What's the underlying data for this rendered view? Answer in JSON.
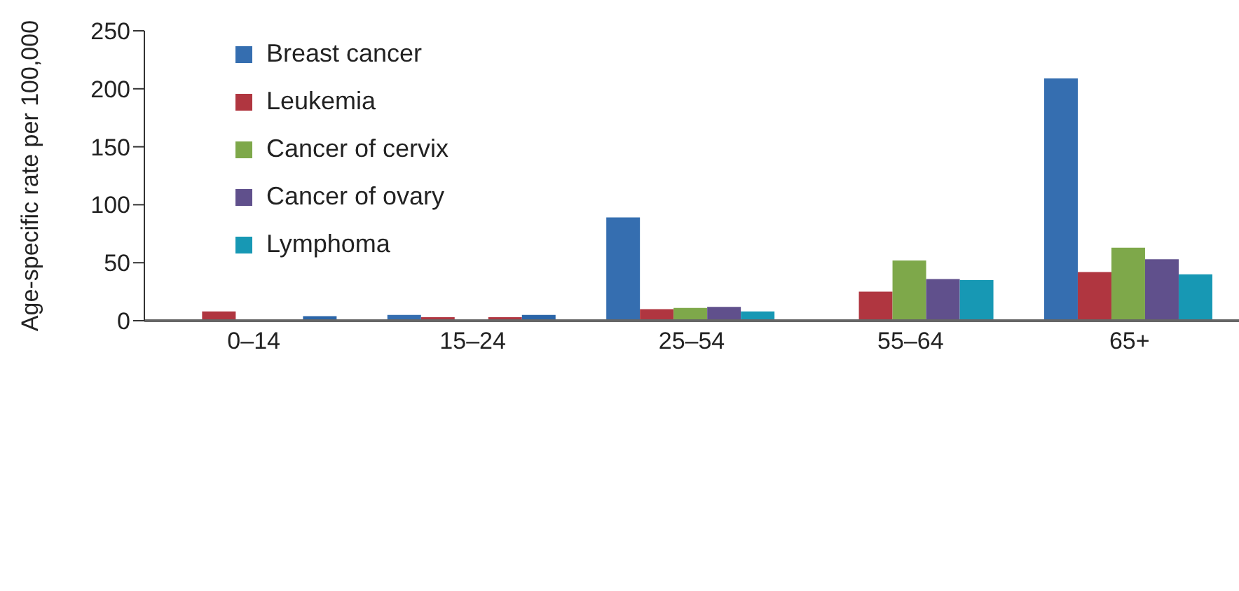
{
  "chart_data": {
    "type": "bar",
    "ylabel": "Age-specific rate per 100,000",
    "categories": [
      "0–14",
      "15–24",
      "25–54",
      "55–64",
      "65+"
    ],
    "series": [
      {
        "name": "Breast cancer",
        "color": "#356eb0",
        "values": [
          0,
          5,
          89,
          0,
          209
        ]
      },
      {
        "name": "Leukemia",
        "color": "#b03640",
        "values": [
          8,
          3,
          10,
          25,
          42
        ]
      },
      {
        "name": "Cancer of cervix",
        "color": "#7ea84a",
        "values": [
          0,
          0,
          11,
          52,
          63
        ]
      },
      {
        "name": "Cancer of ovary",
        "color": "#60508c",
        "colors": [
          "#60508c",
          "#b03640",
          "#60508c",
          "#60508c",
          "#60508c"
        ],
        "values": [
          0,
          3,
          12,
          36,
          53
        ]
      },
      {
        "name": "Lymphoma",
        "color": "#1798b4",
        "colors": [
          "#2a65a8",
          "#2a65a8",
          "#1798b4",
          "#1798b4",
          "#1798b4"
        ],
        "values": [
          4,
          5,
          8,
          35,
          40
        ]
      }
    ],
    "ylim": [
      0,
      250
    ],
    "yticks": [
      0,
      50,
      100,
      150,
      200,
      250
    ],
    "grid": false,
    "legend": "top left"
  }
}
